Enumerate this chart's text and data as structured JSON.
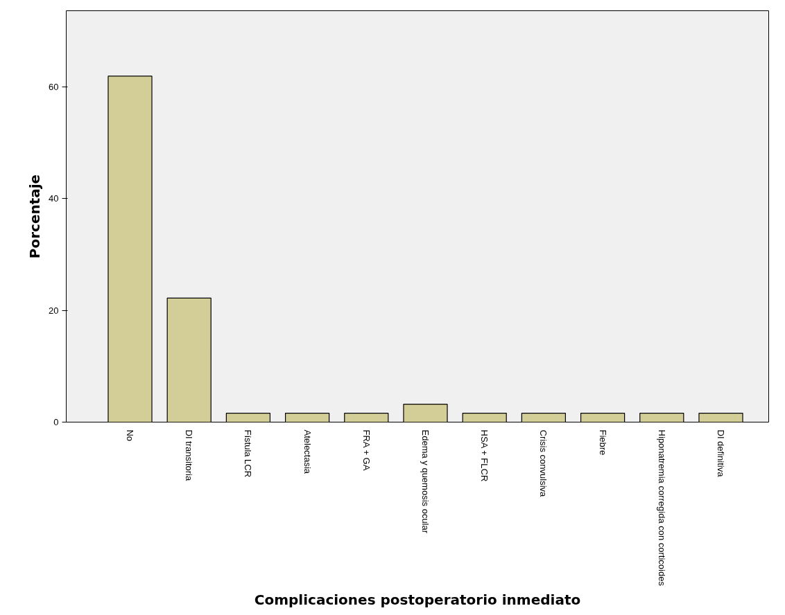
{
  "chart_data": {
    "type": "bar",
    "xlabel": "Complicaciones postoperatorio inmediato",
    "ylabel": "Porcentaje",
    "categories": [
      "No",
      "DI transitoria",
      "Fístula LCR",
      "Atelectasia",
      "FRA + GA",
      "Edema y quemosis ocular",
      "HSA + FLCR",
      "Crisis convulsiva",
      "Fiebre",
      "Hiponatremia corregida con corticoides",
      "DI definitiva"
    ],
    "values": [
      61.9,
      22.2,
      1.6,
      1.6,
      1.6,
      3.2,
      1.6,
      1.6,
      1.6,
      1.6,
      1.6
    ],
    "color": "#d3ce97",
    "ylim": [
      0,
      73.6
    ],
    "yticks": [
      0,
      20,
      40,
      60
    ],
    "grid": false
  }
}
